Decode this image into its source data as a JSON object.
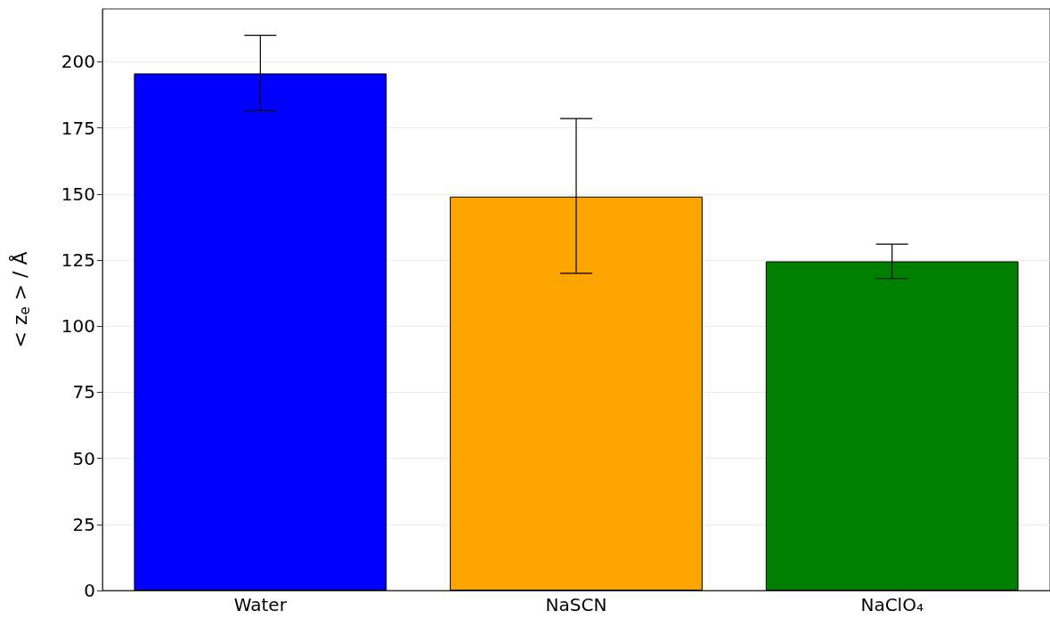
{
  "chart_data": {
    "type": "bar",
    "categories": [
      "Water",
      "NaSCN",
      "NaClO₄"
    ],
    "values": [
      195.6,
      149,
      124.5
    ],
    "colors": [
      "#0000ff",
      "#ffa500",
      "#008000"
    ],
    "errors": [
      [
        181.5,
        210
      ],
      [
        120,
        178.5
      ],
      [
        118,
        131
      ]
    ],
    "ylabel": "< z$_{e}$ > / Å",
    "ylim": [
      0,
      220
    ],
    "yticks": [
      0,
      25,
      50,
      75,
      100,
      125,
      150,
      175,
      200
    ],
    "grid": "y"
  }
}
